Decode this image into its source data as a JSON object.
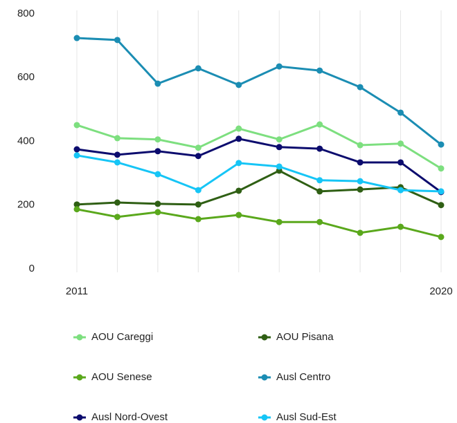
{
  "chart_data": {
    "type": "line",
    "categories": [
      "2011",
      null,
      null,
      null,
      null,
      null,
      null,
      null,
      null,
      "2020"
    ],
    "ylim": [
      0,
      800
    ],
    "yticks": [
      0,
      200,
      400,
      600,
      800
    ],
    "grid": "x",
    "legend": "bottom",
    "series": [
      {
        "name": "AOU Careggi",
        "color": "#7ddf7f",
        "values": [
          451,
          410,
          406,
          380,
          440,
          406,
          453,
          388,
          393,
          315
        ]
      },
      {
        "name": "AOU Pisana",
        "color": "#2f5f14",
        "values": [
          202,
          208,
          204,
          202,
          245,
          308,
          243,
          249,
          256,
          200
        ]
      },
      {
        "name": "AOU Senese",
        "color": "#5aa81c",
        "values": [
          187,
          163,
          178,
          156,
          169,
          147,
          147,
          113,
          132,
          100
        ]
      },
      {
        "name": "Ausl Centro",
        "color": "#1b8db3",
        "values": [
          724,
          718,
          581,
          629,
          577,
          635,
          622,
          570,
          490,
          390
        ]
      },
      {
        "name": "Ausl Nord-Ovest",
        "color": "#0c0c6e",
        "values": [
          375,
          358,
          369,
          354,
          408,
          382,
          377,
          334,
          334,
          241
        ]
      },
      {
        "name": "Ausl Sud-Est",
        "color": "#16c5f6",
        "values": [
          356,
          334,
          297,
          247,
          332,
          321,
          278,
          275,
          247,
          243
        ]
      }
    ]
  }
}
